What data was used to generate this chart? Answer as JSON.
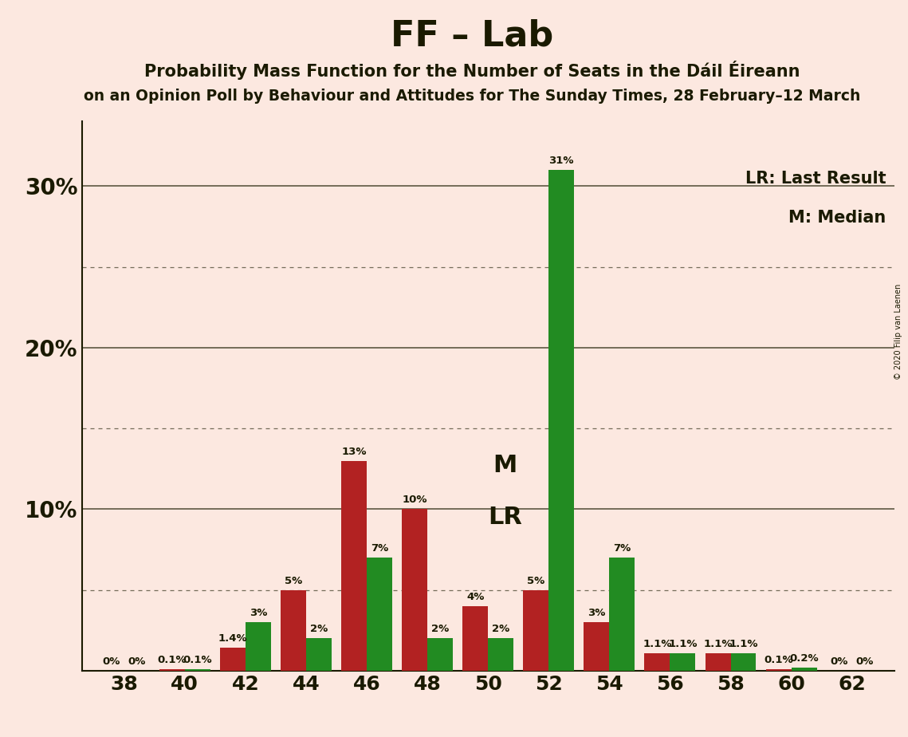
{
  "title": "FF – Lab",
  "subtitle1": "Probability Mass Function for the Number of Seats in the Dáil Éireann",
  "subtitle2": "on an Opinion Poll by Behaviour and Attitudes for The Sunday Times, 28 February–12 March",
  "copyright": "© 2020 Filip van Laenen",
  "x_values": [
    38,
    40,
    42,
    44,
    46,
    48,
    50,
    52,
    54,
    56,
    58,
    60,
    62
  ],
  "red_values": [
    0.0,
    0.1,
    1.4,
    5.0,
    13.0,
    10.0,
    4.0,
    5.0,
    3.0,
    1.1,
    1.1,
    0.1,
    0.0
  ],
  "green_values": [
    0.0,
    0.1,
    3.0,
    2.0,
    7.0,
    2.0,
    2.0,
    31.0,
    7.0,
    1.1,
    1.1,
    0.2,
    0.0
  ],
  "red_labels": [
    "0%",
    "0.1%",
    "1.4%",
    "5%",
    "13%",
    "10%",
    "4%",
    "5%",
    "3%",
    "1.1%",
    "1.1%",
    "0.1%",
    "0%"
  ],
  "green_labels": [
    "0%",
    "0.1%",
    "3%",
    "2%",
    "7%",
    "2%",
    "2%",
    "31%",
    "7%",
    "1.1%",
    "1.1%",
    "0.2%",
    "0%"
  ],
  "red_color": "#b22222",
  "green_color": "#228b22",
  "background_color": "#fce8e0",
  "text_color": "#1a1a00",
  "ylim_max": 34,
  "bar_width": 0.42,
  "legend_lr": "LR: Last Result",
  "legend_m": "M: Median",
  "solid_lines": [
    10,
    20,
    30
  ],
  "dotted_lines": [
    5,
    15,
    25
  ],
  "ytick_values": [
    10,
    20,
    30
  ],
  "ytick_labels": [
    "10%",
    "20%",
    "30%"
  ]
}
